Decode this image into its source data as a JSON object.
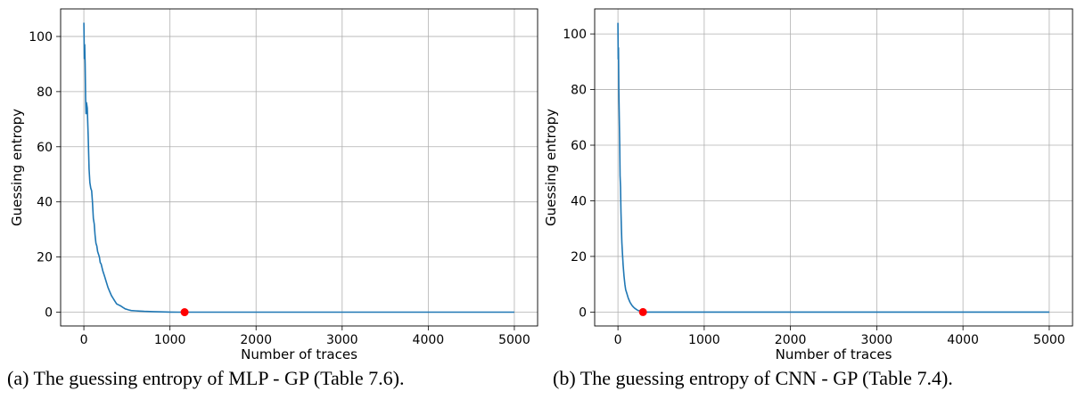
{
  "chart_data": [
    {
      "type": "line",
      "xlabel": "Number of traces",
      "ylabel": "Guessing entropy",
      "xlim": [
        -270,
        5270
      ],
      "ylim": [
        -5,
        110
      ],
      "xticks": [
        0,
        1000,
        2000,
        3000,
        4000,
        5000
      ],
      "yticks": [
        0,
        20,
        40,
        60,
        80,
        100
      ],
      "grid": true,
      "line_color": "#1f77b4",
      "marker_color": "#ff0000",
      "series": [
        {
          "x": [
            0,
            5,
            10,
            15,
            20,
            25,
            30,
            40,
            50,
            60,
            70,
            80,
            90,
            100,
            110,
            120,
            130,
            140,
            150,
            160,
            170,
            180,
            190,
            200,
            220,
            240,
            260,
            280,
            300,
            320,
            340,
            360,
            380,
            400,
            420,
            440,
            460,
            480,
            500,
            520,
            550,
            600,
            650,
            700,
            800,
            900,
            1000,
            1100,
            1170,
            1500,
            2000,
            3000,
            4000,
            5000
          ],
          "y": [
            105,
            92,
            97,
            90,
            78,
            72,
            76,
            74,
            64,
            52,
            47,
            45,
            44,
            40,
            34,
            32,
            28,
            25,
            24,
            22,
            21,
            20,
            18,
            17.5,
            15,
            13,
            11,
            9,
            7.5,
            6,
            5,
            4,
            3,
            2.7,
            2.4,
            2,
            1.6,
            1.2,
            1,
            0.8,
            0.6,
            0.5,
            0.4,
            0.3,
            0.2,
            0.1,
            0.05,
            0.02,
            0,
            0,
            0,
            0,
            0,
            0
          ]
        }
      ],
      "marker": {
        "x": 1170,
        "y": 0
      }
    },
    {
      "type": "line",
      "xlabel": "Number of traces",
      "ylabel": "Guessing entropy",
      "xlim": [
        -270,
        5270
      ],
      "ylim": [
        -5,
        109
      ],
      "xticks": [
        0,
        1000,
        2000,
        3000,
        4000,
        5000
      ],
      "yticks": [
        0,
        20,
        40,
        60,
        80,
        100
      ],
      "grid": true,
      "line_color": "#1f77b4",
      "marker_color": "#ff0000",
      "series": [
        {
          "x": [
            0,
            3,
            6,
            10,
            15,
            20,
            25,
            30,
            35,
            40,
            45,
            50,
            60,
            70,
            80,
            90,
            100,
            120,
            140,
            160,
            180,
            200,
            230,
            260,
            290,
            400,
            1000,
            2000,
            3000,
            4000,
            5000
          ],
          "y": [
            104,
            91,
            95,
            80,
            70,
            60,
            49,
            45,
            36,
            30,
            25,
            22,
            17,
            13,
            10,
            8,
            7,
            5,
            3.5,
            2.5,
            1.8,
            1.2,
            0.6,
            0.3,
            0,
            0,
            0,
            0,
            0,
            0,
            0
          ]
        }
      ],
      "marker": {
        "x": 290,
        "y": 0
      }
    }
  ],
  "captions": [
    "(a) The guessing entropy of MLP - GP (Table 7.6).",
    "(b) The guessing entropy of CNN - GP (Table 7.4)."
  ]
}
